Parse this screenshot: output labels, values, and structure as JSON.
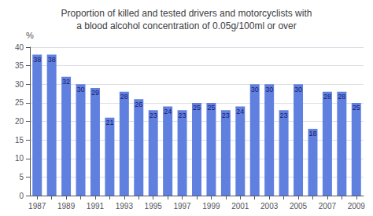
{
  "chart_data": {
    "type": "bar",
    "title": "Proportion of killed and tested drivers and motorcyclists with\na blood alcohol concentration of 0.05g/100ml or over",
    "ylabel": "%",
    "categories": [
      "1987",
      null,
      "1989",
      null,
      "1991",
      null,
      "1993",
      null,
      "1995",
      null,
      "1997",
      null,
      "1999",
      null,
      "2001",
      null,
      "2003",
      null,
      "2005",
      null,
      "2007",
      null,
      "2009"
    ],
    "values": [
      38,
      38,
      32,
      30,
      29,
      21,
      28,
      26,
      23,
      24,
      23,
      25,
      25,
      23,
      24,
      30,
      30,
      23,
      30,
      18,
      28,
      28,
      25
    ],
    "color": "#6080E0",
    "ylim": [
      0,
      40
    ],
    "yticks": [
      0,
      5,
      10,
      15,
      20,
      25,
      30,
      35,
      40
    ],
    "grid": true,
    "data_labels": true
  }
}
